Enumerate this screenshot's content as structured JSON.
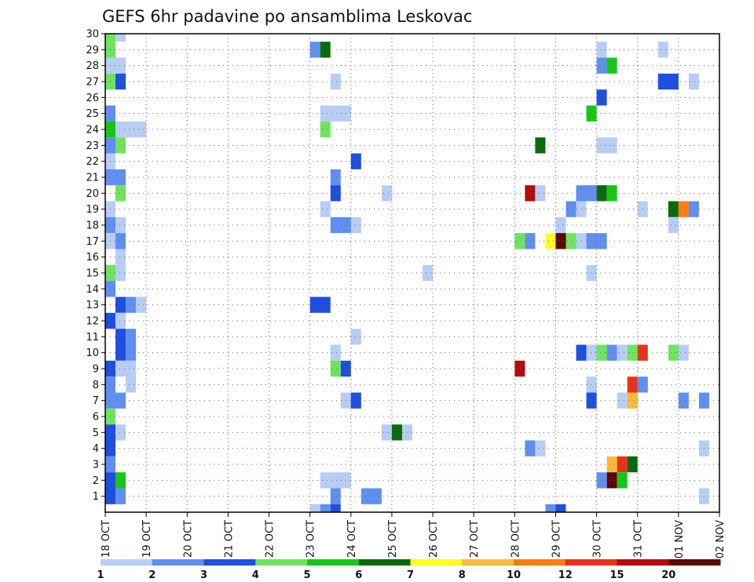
{
  "chart_data": {
    "type": "heatmap",
    "title": "GEFS 6hr padavine po ansamblima Leskovac",
    "xlabel": "",
    "ylabel": "",
    "x_tick_labels": [
      "18 OCT",
      "19 OCT",
      "20 OCT",
      "21 OCT",
      "22 OCT",
      "23 OCT",
      "24 OCT",
      "25 OCT",
      "26 OCT",
      "27 OCT",
      "28 OCT",
      "29 OCT",
      "30 OCT",
      "31 OCT",
      "01 NOV",
      "02 NOV"
    ],
    "x_range_days": [
      0,
      15
    ],
    "y_tick_labels": [
      "1",
      "2",
      "3",
      "4",
      "5",
      "6",
      "7",
      "8",
      "9",
      "10",
      "11",
      "12",
      "13",
      "14",
      "15",
      "16",
      "17",
      "18",
      "19",
      "20",
      "21",
      "22",
      "23",
      "24",
      "25",
      "26",
      "27",
      "28",
      "29",
      "30"
    ],
    "y_range": [
      0,
      30
    ],
    "grid": true,
    "legend": {
      "placement": "bottom",
      "colors": [
        "#b8cdf5",
        "#5f8ff0",
        "#1f4fdf",
        "#6ee45e",
        "#15c815",
        "#0b6a0b",
        "#ffff1e",
        "#ffb83a",
        "#ff7d10",
        "#e5341a",
        "#b20c0c",
        "#5c0606"
      ],
      "labels": [
        "1",
        "2",
        "3",
        "4",
        "5",
        "6",
        "7",
        "8",
        "10",
        "12",
        "15",
        "20"
      ]
    },
    "cells": [
      [
        30,
        0,
        1,
        "#6ee45e"
      ],
      [
        30,
        1,
        2,
        "#b8cdf5"
      ],
      [
        29,
        0,
        1,
        "#6ee45e"
      ],
      [
        29,
        20,
        21,
        "#5f8ff0"
      ],
      [
        29,
        21,
        22,
        "#0b6a0b"
      ],
      [
        29,
        48,
        49,
        "#b8cdf5"
      ],
      [
        29,
        54,
        55,
        "#b8cdf5"
      ],
      [
        28,
        0,
        2,
        "#b8cdf5"
      ],
      [
        28,
        48,
        49,
        "#5f8ff0"
      ],
      [
        28,
        49,
        50,
        "#15c815"
      ],
      [
        27,
        0,
        1,
        "#6ee45e"
      ],
      [
        27,
        1,
        2,
        "#1f4fdf"
      ],
      [
        27,
        22,
        23,
        "#b8cdf5"
      ],
      [
        27,
        54,
        56,
        "#1f4fdf"
      ],
      [
        27,
        57,
        58,
        "#b8cdf5"
      ],
      [
        26,
        48,
        49,
        "#1f4fdf"
      ],
      [
        25,
        0,
        1,
        "#5f8ff0"
      ],
      [
        25,
        21,
        24,
        "#b8cdf5"
      ],
      [
        25,
        47,
        48,
        "#15c815"
      ],
      [
        24,
        0,
        1,
        "#15c815"
      ],
      [
        24,
        1,
        4,
        "#b8cdf5"
      ],
      [
        24,
        21,
        22,
        "#6ee45e"
      ],
      [
        23,
        0,
        1,
        "#5f8ff0"
      ],
      [
        23,
        1,
        2,
        "#6ee45e"
      ],
      [
        23,
        42,
        43,
        "#0b6a0b"
      ],
      [
        23,
        48,
        50,
        "#b8cdf5"
      ],
      [
        22,
        0,
        1,
        "#b8cdf5"
      ],
      [
        22,
        24,
        25,
        "#1f4fdf"
      ],
      [
        21,
        0,
        2,
        "#5f8ff0"
      ],
      [
        21,
        22,
        23,
        "#5f8ff0"
      ],
      [
        20,
        1,
        2,
        "#6ee45e"
      ],
      [
        20,
        22,
        23,
        "#1f4fdf"
      ],
      [
        20,
        27,
        28,
        "#b8cdf5"
      ],
      [
        20,
        41,
        42,
        "#b20c0c"
      ],
      [
        20,
        42,
        43,
        "#b8cdf5"
      ],
      [
        20,
        46,
        48,
        "#5f8ff0"
      ],
      [
        20,
        48,
        49,
        "#0b6a0b"
      ],
      [
        20,
        49,
        50,
        "#15c815"
      ],
      [
        19,
        0,
        1,
        "#b8cdf5"
      ],
      [
        19,
        21,
        22,
        "#b8cdf5"
      ],
      [
        19,
        45,
        46,
        "#5f8ff0"
      ],
      [
        19,
        46,
        47,
        "#b8cdf5"
      ],
      [
        19,
        52,
        53,
        "#b8cdf5"
      ],
      [
        19,
        55,
        56,
        "#0b6a0b"
      ],
      [
        19,
        56,
        57,
        "#ff7d10"
      ],
      [
        19,
        57,
        58,
        "#5f8ff0"
      ],
      [
        18,
        0,
        1,
        "#5f8ff0"
      ],
      [
        18,
        1,
        2,
        "#b8cdf5"
      ],
      [
        18,
        22,
        24,
        "#5f8ff0"
      ],
      [
        18,
        24,
        25,
        "#b8cdf5"
      ],
      [
        18,
        44,
        45,
        "#b8cdf5"
      ],
      [
        18,
        55,
        56,
        "#b8cdf5"
      ],
      [
        17,
        0,
        1,
        "#b8cdf5"
      ],
      [
        17,
        1,
        2,
        "#5f8ff0"
      ],
      [
        17,
        40,
        41,
        "#6ee45e"
      ],
      [
        17,
        41,
        42,
        "#5f8ff0"
      ],
      [
        17,
        43,
        44,
        "#ffff1e"
      ],
      [
        17,
        44,
        45,
        "#5c0606"
      ],
      [
        17,
        45,
        46,
        "#6ee45e"
      ],
      [
        17,
        46,
        47,
        "#b8cdf5"
      ],
      [
        17,
        47,
        49,
        "#5f8ff0"
      ],
      [
        16,
        1,
        2,
        "#b8cdf5"
      ],
      [
        15,
        0,
        1,
        "#6ee45e"
      ],
      [
        15,
        1,
        2,
        "#b8cdf5"
      ],
      [
        15,
        31,
        32,
        "#b8cdf5"
      ],
      [
        15,
        47,
        48,
        "#b8cdf5"
      ],
      [
        14,
        0,
        1,
        "#5f8ff0"
      ],
      [
        13,
        1,
        2,
        "#1f4fdf"
      ],
      [
        13,
        2,
        3,
        "#5f8ff0"
      ],
      [
        13,
        3,
        4,
        "#b8cdf5"
      ],
      [
        13,
        20,
        22,
        "#1f4fdf"
      ],
      [
        12,
        0,
        1,
        "#1f4fdf"
      ],
      [
        12,
        1,
        2,
        "#b8cdf5"
      ],
      [
        11,
        1,
        2,
        "#1f4fdf"
      ],
      [
        11,
        2,
        3,
        "#5f8ff0"
      ],
      [
        11,
        24,
        25,
        "#b8cdf5"
      ],
      [
        10,
        1,
        2,
        "#1f4fdf"
      ],
      [
        10,
        2,
        3,
        "#5f8ff0"
      ],
      [
        10,
        22,
        23,
        "#b8cdf5"
      ],
      [
        10,
        46,
        47,
        "#1f4fdf"
      ],
      [
        10,
        47,
        48,
        "#b8cdf5"
      ],
      [
        10,
        48,
        49,
        "#6ee45e"
      ],
      [
        10,
        49,
        50,
        "#5f8ff0"
      ],
      [
        10,
        50,
        51,
        "#b8cdf5"
      ],
      [
        10,
        51,
        52,
        "#6ee45e"
      ],
      [
        10,
        52,
        53,
        "#e5341a"
      ],
      [
        10,
        55,
        56,
        "#6ee45e"
      ],
      [
        10,
        56,
        57,
        "#b8cdf5"
      ],
      [
        9,
        0,
        1,
        "#1f4fdf"
      ],
      [
        9,
        1,
        3,
        "#b8cdf5"
      ],
      [
        9,
        22,
        23,
        "#6ee45e"
      ],
      [
        9,
        23,
        24,
        "#1f4fdf"
      ],
      [
        9,
        40,
        41,
        "#b20c0c"
      ],
      [
        8,
        0,
        1,
        "#5f8ff0"
      ],
      [
        8,
        2,
        3,
        "#b8cdf5"
      ],
      [
        8,
        47,
        48,
        "#b8cdf5"
      ],
      [
        8,
        51,
        52,
        "#e5341a"
      ],
      [
        8,
        52,
        53,
        "#5f8ff0"
      ],
      [
        7,
        0,
        2,
        "#5f8ff0"
      ],
      [
        7,
        23,
        24,
        "#b8cdf5"
      ],
      [
        7,
        24,
        25,
        "#1f4fdf"
      ],
      [
        7,
        47,
        48,
        "#1f4fdf"
      ],
      [
        7,
        50,
        51,
        "#b8cdf5"
      ],
      [
        7,
        51,
        52,
        "#ffb83a"
      ],
      [
        7,
        56,
        57,
        "#5f8ff0"
      ],
      [
        7,
        58,
        59,
        "#5f8ff0"
      ],
      [
        6,
        0,
        1,
        "#6ee45e"
      ],
      [
        5,
        0,
        1,
        "#1f4fdf"
      ],
      [
        5,
        1,
        2,
        "#b8cdf5"
      ],
      [
        5,
        27,
        28,
        "#b8cdf5"
      ],
      [
        5,
        28,
        29,
        "#0b6a0b"
      ],
      [
        5,
        29,
        30,
        "#b8cdf5"
      ],
      [
        4,
        0,
        1,
        "#1f4fdf"
      ],
      [
        4,
        41,
        42,
        "#5f8ff0"
      ],
      [
        4,
        42,
        43,
        "#b8cdf5"
      ],
      [
        4,
        58,
        59,
        "#b8cdf5"
      ],
      [
        3,
        0,
        1,
        "#5f8ff0"
      ],
      [
        3,
        49,
        50,
        "#ffb83a"
      ],
      [
        3,
        50,
        51,
        "#e5341a"
      ],
      [
        3,
        51,
        52,
        "#0b6a0b"
      ],
      [
        2,
        0,
        1,
        "#1f4fdf"
      ],
      [
        2,
        1,
        2,
        "#15c815"
      ],
      [
        2,
        21,
        24,
        "#b8cdf5"
      ],
      [
        2,
        48,
        49,
        "#5f8ff0"
      ],
      [
        2,
        49,
        50,
        "#5c0606"
      ],
      [
        2,
        50,
        51,
        "#15c815"
      ],
      [
        1,
        0,
        1,
        "#1f4fdf"
      ],
      [
        1,
        1,
        2,
        "#5f8ff0"
      ],
      [
        1,
        22,
        23,
        "#5f8ff0"
      ],
      [
        1,
        25,
        27,
        "#5f8ff0"
      ],
      [
        1,
        58,
        59,
        "#b8cdf5"
      ],
      [
        0,
        20,
        21,
        "#b8cdf5"
      ],
      [
        0,
        21,
        22,
        "#5f8ff0"
      ],
      [
        0,
        22,
        23,
        "#1f4fdf"
      ],
      [
        0,
        43,
        44,
        "#5f8ff0"
      ],
      [
        0,
        44,
        45,
        "#1f4fdf"
      ]
    ]
  }
}
